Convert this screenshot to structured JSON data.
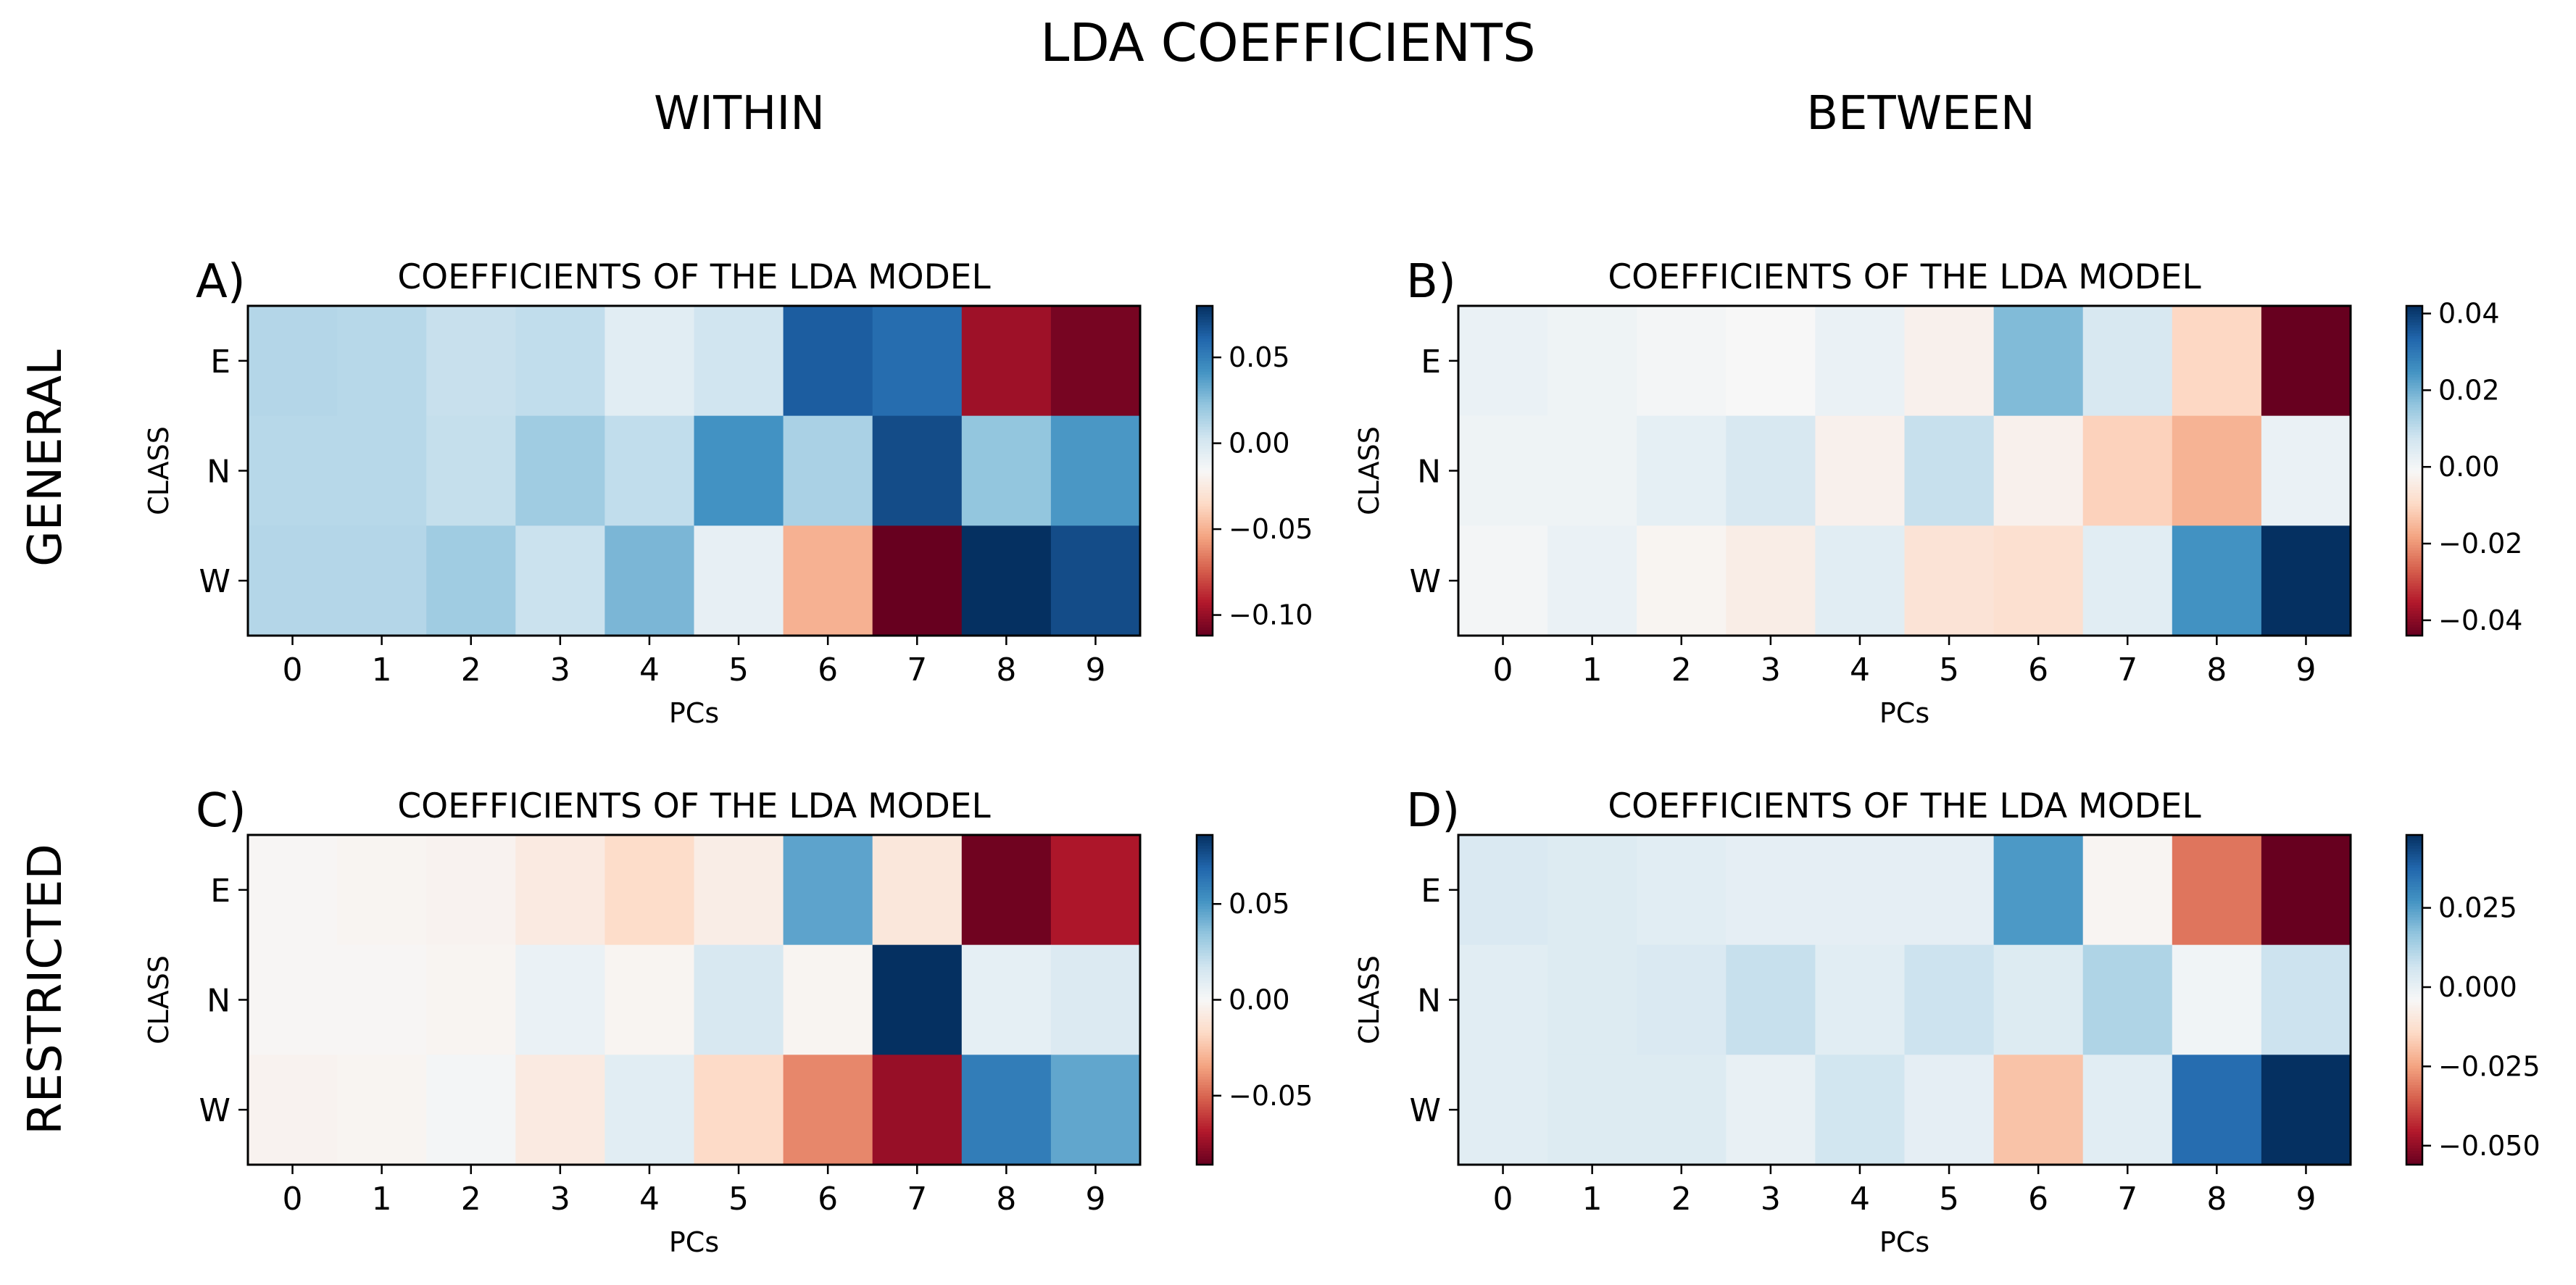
{
  "figure": {
    "title": "LDA COEFFICIENTS",
    "column_titles": [
      "WITHIN",
      "BETWEEN"
    ],
    "row_titles": [
      "GENERAL",
      "RESTRICTED"
    ]
  },
  "colormap": {
    "name": "RdBu",
    "stops": [
      "#67001f",
      "#b2182b",
      "#d6604d",
      "#f4a582",
      "#fddbc7",
      "#f7f7f7",
      "#d1e5f0",
      "#92c5de",
      "#4393c3",
      "#2166ac",
      "#053061"
    ]
  },
  "chart_data": [
    {
      "type": "heatmap",
      "panel_label": "A)",
      "title": "COEFFICIENTS OF THE LDA MODEL",
      "xlabel": "PCs",
      "ylabel": "CLASS",
      "x": [
        "0",
        "1",
        "2",
        "3",
        "4",
        "5",
        "6",
        "7",
        "8",
        "9"
      ],
      "y": [
        "E",
        "N",
        "W"
      ],
      "values": [
        [
          0.012,
          0.011,
          0.006,
          0.008,
          -0.005,
          0.003,
          0.064,
          0.058,
          -0.098,
          -0.108
        ],
        [
          0.011,
          0.011,
          0.007,
          0.018,
          0.008,
          0.042,
          0.015,
          0.07,
          0.022,
          0.04
        ],
        [
          0.012,
          0.012,
          0.018,
          0.005,
          0.028,
          -0.008,
          -0.05,
          -0.112,
          0.08,
          0.07
        ]
      ],
      "vmin": -0.112,
      "vmax": 0.08,
      "colorbar_ticks": [
        0.05,
        0.0,
        -0.05,
        -0.1
      ],
      "colorbar_labels": [
        "0.05",
        "0.00",
        "−0.05",
        "−0.10"
      ]
    },
    {
      "type": "heatmap",
      "panel_label": "B)",
      "title": "COEFFICIENTS OF THE LDA MODEL",
      "xlabel": "PCs",
      "ylabel": "CLASS",
      "x": [
        "0",
        "1",
        "2",
        "3",
        "4",
        "5",
        "6",
        "7",
        "8",
        "9"
      ],
      "y": [
        "E",
        "N",
        "W"
      ],
      "values": [
        [
          0.002,
          0.001,
          0.0,
          -0.001,
          0.002,
          -0.003,
          0.018,
          0.006,
          -0.01,
          -0.044
        ],
        [
          0.001,
          0.001,
          0.003,
          0.006,
          -0.003,
          0.009,
          -0.003,
          -0.011,
          -0.016,
          0.002
        ],
        [
          0.0,
          0.002,
          -0.002,
          -0.004,
          0.004,
          -0.007,
          -0.008,
          0.004,
          0.025,
          0.042
        ]
      ],
      "vmin": -0.044,
      "vmax": 0.042,
      "colorbar_ticks": [
        0.04,
        0.02,
        0.0,
        -0.02,
        -0.04
      ],
      "colorbar_labels": [
        "0.04",
        "0.02",
        "0.00",
        "−0.02",
        "−0.04"
      ]
    },
    {
      "type": "heatmap",
      "panel_label": "C)",
      "title": "COEFFICIENTS OF THE LDA MODEL",
      "xlabel": "PCs",
      "ylabel": "CLASS",
      "x": [
        "0",
        "1",
        "2",
        "3",
        "4",
        "5",
        "6",
        "7",
        "8",
        "9"
      ],
      "y": [
        "E",
        "N",
        "W"
      ],
      "values": [
        [
          -0.001,
          -0.002,
          -0.003,
          -0.008,
          -0.016,
          -0.006,
          0.046,
          -0.01,
          -0.084,
          -0.07
        ],
        [
          -0.001,
          -0.001,
          -0.002,
          0.006,
          -0.002,
          0.014,
          -0.002,
          0.086,
          0.008,
          0.012
        ],
        [
          -0.003,
          -0.002,
          0.002,
          -0.008,
          0.01,
          -0.017,
          -0.042,
          -0.075,
          0.06,
          0.045
        ]
      ],
      "vmin": -0.086,
      "vmax": 0.086,
      "colorbar_ticks": [
        0.05,
        0.0,
        -0.05
      ],
      "colorbar_labels": [
        "0.05",
        "0.00",
        "−0.05"
      ]
    },
    {
      "type": "heatmap",
      "panel_label": "D)",
      "title": "COEFFICIENTS OF THE LDA MODEL",
      "xlabel": "PCs",
      "ylabel": "CLASS",
      "x": [
        "0",
        "1",
        "2",
        "3",
        "4",
        "5",
        "6",
        "7",
        "8",
        "9"
      ],
      "y": [
        "E",
        "N",
        "W"
      ],
      "values": [
        [
          0.004,
          0.003,
          0.002,
          0.001,
          0.001,
          0.001,
          0.026,
          -0.005,
          -0.032,
          -0.056
        ],
        [
          0.002,
          0.003,
          0.004,
          0.008,
          0.002,
          0.007,
          0.003,
          0.012,
          -0.002,
          0.007
        ],
        [
          0.002,
          0.003,
          0.003,
          0.0,
          0.006,
          0.001,
          -0.019,
          0.002,
          0.036,
          0.048
        ]
      ],
      "vmin": -0.056,
      "vmax": 0.048,
      "colorbar_ticks": [
        0.025,
        0.0,
        -0.025,
        -0.05
      ],
      "colorbar_labels": [
        "0.025",
        "0.000",
        "−0.025",
        "−0.050"
      ]
    }
  ]
}
